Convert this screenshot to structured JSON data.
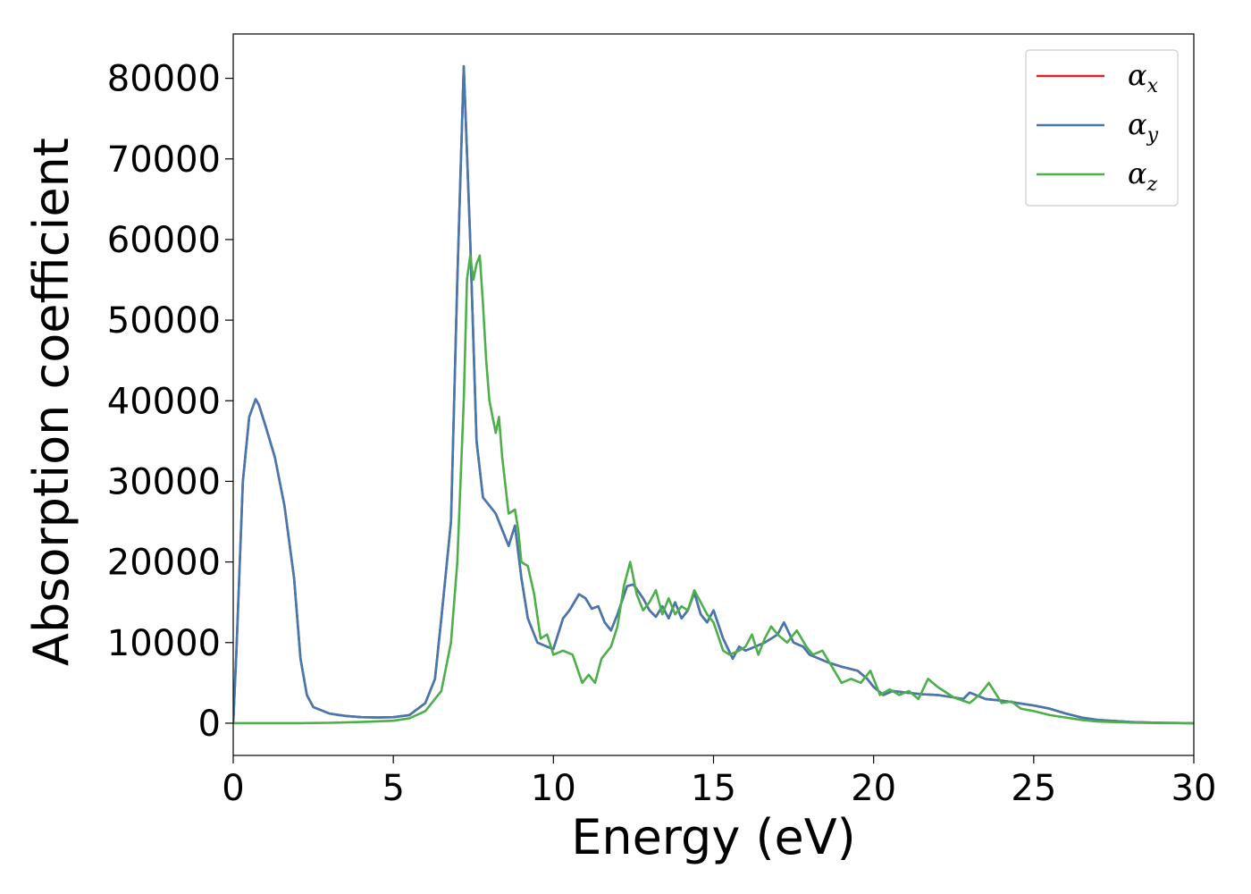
{
  "chart_data": {
    "type": "line",
    "title": "",
    "xlabel": "Energy (eV)",
    "ylabel": "Absorption coefficient",
    "xlim": [
      0,
      30
    ],
    "ylim": [
      -4000,
      85500
    ],
    "xticks": [
      0,
      5,
      10,
      15,
      20,
      25,
      30
    ],
    "yticks": [
      0,
      10000,
      20000,
      30000,
      40000,
      50000,
      60000,
      70000,
      80000
    ],
    "grid": false,
    "legend_position": "top-right",
    "series": [
      {
        "name": "αx",
        "legend_base": "α",
        "legend_sub": "x",
        "color": "#d62728",
        "x": [
          0,
          0.1,
          0.3,
          0.5,
          0.7,
          0.8,
          1.0,
          1.3,
          1.6,
          1.9,
          2.1,
          2.3,
          2.5,
          3.0,
          3.5,
          4.0,
          4.5,
          5.0,
          5.5,
          6.0,
          6.3,
          6.5,
          6.8,
          7.0,
          7.2,
          7.4,
          7.6,
          7.8,
          8.0,
          8.2,
          8.4,
          8.6,
          8.8,
          9.0,
          9.2,
          9.5,
          9.8,
          10.0,
          10.3,
          10.5,
          10.8,
          11.0,
          11.2,
          11.4,
          11.6,
          11.8,
          12.0,
          12.3,
          12.5,
          12.8,
          13.0,
          13.2,
          13.4,
          13.6,
          13.8,
          14.0,
          14.2,
          14.4,
          14.6,
          14.8,
          15.0,
          15.3,
          15.6,
          15.8,
          16.0,
          16.3,
          16.6,
          16.8,
          17.0,
          17.2,
          17.5,
          17.8,
          18.0,
          18.3,
          18.6,
          19.0,
          19.5,
          19.8,
          20.0,
          20.3,
          20.6,
          21.0,
          21.5,
          22.0,
          22.5,
          22.8,
          23.0,
          23.5,
          24.0,
          24.5,
          25.0,
          25.5,
          26.0,
          26.5,
          27.0,
          28.0,
          29.0,
          30.0
        ],
        "y": [
          0,
          9000,
          30000,
          38000,
          40200,
          39500,
          37000,
          33000,
          27000,
          18000,
          8000,
          3500,
          2000,
          1200,
          900,
          750,
          700,
          750,
          1000,
          2500,
          5500,
          13000,
          25000,
          55000,
          81500,
          60000,
          35000,
          28000,
          27000,
          26000,
          24000,
          22000,
          24500,
          18000,
          13000,
          10000,
          9500,
          9200,
          13000,
          14000,
          16000,
          15500,
          14200,
          14500,
          12500,
          11500,
          13500,
          17000,
          17200,
          15500,
          14000,
          13200,
          14500,
          13000,
          15000,
          13000,
          14000,
          16200,
          13500,
          12500,
          14000,
          10500,
          8000,
          9500,
          9000,
          9500,
          10000,
          10500,
          11000,
          12500,
          10000,
          9500,
          8500,
          8000,
          7500,
          7000,
          6500,
          5500,
          4500,
          3500,
          4000,
          3800,
          3600,
          3500,
          3200,
          3000,
          3800,
          3000,
          2800,
          2500,
          2200,
          1800,
          1200,
          700,
          400,
          150,
          50,
          0
        ]
      },
      {
        "name": "αy",
        "legend_base": "α",
        "legend_sub": "y",
        "color": "#4478b1",
        "x": [
          0,
          0.1,
          0.3,
          0.5,
          0.7,
          0.8,
          1.0,
          1.3,
          1.6,
          1.9,
          2.1,
          2.3,
          2.5,
          3.0,
          3.5,
          4.0,
          4.5,
          5.0,
          5.5,
          6.0,
          6.3,
          6.5,
          6.8,
          7.0,
          7.2,
          7.4,
          7.6,
          7.8,
          8.0,
          8.2,
          8.4,
          8.6,
          8.8,
          9.0,
          9.2,
          9.5,
          9.8,
          10.0,
          10.3,
          10.5,
          10.8,
          11.0,
          11.2,
          11.4,
          11.6,
          11.8,
          12.0,
          12.3,
          12.5,
          12.8,
          13.0,
          13.2,
          13.4,
          13.6,
          13.8,
          14.0,
          14.2,
          14.4,
          14.6,
          14.8,
          15.0,
          15.3,
          15.6,
          15.8,
          16.0,
          16.3,
          16.6,
          16.8,
          17.0,
          17.2,
          17.5,
          17.8,
          18.0,
          18.3,
          18.6,
          19.0,
          19.5,
          19.8,
          20.0,
          20.3,
          20.6,
          21.0,
          21.5,
          22.0,
          22.5,
          22.8,
          23.0,
          23.5,
          24.0,
          24.5,
          25.0,
          25.5,
          26.0,
          26.5,
          27.0,
          28.0,
          29.0,
          30.0
        ],
        "y": [
          0,
          9000,
          30000,
          38000,
          40200,
          39500,
          37000,
          33000,
          27000,
          18000,
          8000,
          3500,
          2000,
          1200,
          900,
          750,
          700,
          750,
          1000,
          2500,
          5500,
          13000,
          25000,
          55000,
          81500,
          60000,
          35000,
          28000,
          27000,
          26000,
          24000,
          22000,
          24500,
          18000,
          13000,
          10000,
          9500,
          9200,
          13000,
          14000,
          16000,
          15500,
          14200,
          14500,
          12500,
          11500,
          13500,
          17000,
          17200,
          15500,
          14000,
          13200,
          14500,
          13000,
          15000,
          13000,
          14000,
          16200,
          13500,
          12500,
          14000,
          10500,
          8000,
          9500,
          9000,
          9500,
          10000,
          10500,
          11000,
          12500,
          10000,
          9500,
          8500,
          8000,
          7500,
          7000,
          6500,
          5500,
          4500,
          3500,
          4000,
          3800,
          3600,
          3500,
          3200,
          3000,
          3800,
          3000,
          2800,
          2500,
          2200,
          1800,
          1200,
          700,
          400,
          150,
          50,
          0
        ]
      },
      {
        "name": "αz",
        "legend_base": "α",
        "legend_sub": "z",
        "color": "#4daf4a",
        "x": [
          0,
          1.0,
          2.0,
          3.0,
          4.0,
          5.0,
          5.5,
          6.0,
          6.5,
          6.8,
          7.0,
          7.2,
          7.3,
          7.4,
          7.5,
          7.6,
          7.7,
          7.8,
          7.9,
          8.0,
          8.2,
          8.3,
          8.4,
          8.6,
          8.8,
          8.9,
          9.0,
          9.2,
          9.4,
          9.6,
          9.8,
          10.0,
          10.3,
          10.6,
          10.9,
          11.1,
          11.3,
          11.5,
          11.8,
          12.0,
          12.2,
          12.4,
          12.6,
          12.8,
          13.0,
          13.2,
          13.4,
          13.6,
          13.8,
          14.0,
          14.2,
          14.4,
          14.6,
          14.8,
          15.0,
          15.3,
          15.5,
          15.8,
          16.0,
          16.2,
          16.4,
          16.6,
          16.8,
          17.0,
          17.3,
          17.6,
          17.9,
          18.1,
          18.4,
          18.7,
          19.0,
          19.3,
          19.6,
          19.9,
          20.2,
          20.5,
          20.8,
          21.1,
          21.4,
          21.7,
          22.0,
          22.5,
          23.0,
          23.3,
          23.6,
          24.0,
          24.3,
          24.6,
          25.0,
          25.5,
          26.0,
          26.5,
          27.0,
          28.0,
          29.0,
          30.0
        ],
        "y": [
          0,
          0,
          0,
          50,
          150,
          300,
          600,
          1500,
          4000,
          10000,
          20000,
          40000,
          55000,
          58000,
          55000,
          57000,
          58000,
          52000,
          45000,
          40000,
          36000,
          38000,
          33000,
          26000,
          26500,
          24000,
          20000,
          19500,
          16000,
          10500,
          11000,
          8500,
          9000,
          8500,
          5000,
          6000,
          5000,
          8000,
          9500,
          12000,
          17000,
          20000,
          16000,
          14000,
          15000,
          16500,
          13500,
          15500,
          13500,
          14500,
          14000,
          16500,
          15000,
          13500,
          12500,
          9000,
          8500,
          9000,
          9500,
          11000,
          8500,
          10500,
          12000,
          11000,
          10000,
          11500,
          9500,
          8500,
          9000,
          7000,
          5000,
          5500,
          5000,
          6500,
          3500,
          4200,
          3500,
          4000,
          3000,
          5500,
          4500,
          3200,
          2500,
          3500,
          5000,
          2500,
          2700,
          1800,
          1500,
          1000,
          700,
          400,
          200,
          80,
          20,
          0
        ]
      }
    ]
  }
}
